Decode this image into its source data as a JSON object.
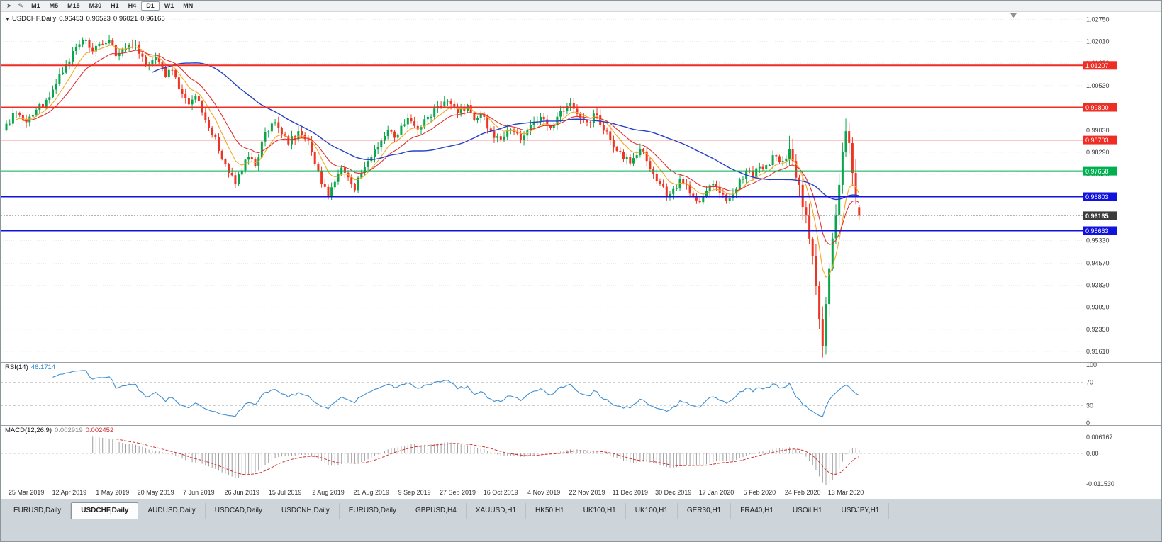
{
  "toolbar": {
    "timeframes": [
      "M1",
      "M5",
      "M15",
      "M30",
      "H1",
      "H4",
      "D1",
      "W1",
      "MN"
    ],
    "active_timeframe": "D1",
    "cursor_icon": "cursor",
    "pencil_icon": "pencil"
  },
  "chart": {
    "title": "USDCHF,Daily",
    "ohlc": {
      "open": "0.96453",
      "high": "0.96523",
      "low": "0.96021",
      "close": "0.96165"
    },
    "axis_ticks": [
      1.0275,
      1.0201,
      1.0128,
      1.0053,
      0.998,
      0.9903,
      0.9829,
      0.9755,
      0.968,
      0.9533,
      0.9457,
      0.9383,
      0.9309,
      0.9235,
      0.9161
    ],
    "levels": [
      {
        "price": 1.01207,
        "label": "1.01207",
        "color": "#ee2e24",
        "width": 2
      },
      {
        "price": 0.998,
        "label": "0.99800",
        "color": "#ee2e24",
        "width": 2
      },
      {
        "price": 0.98703,
        "label": "0.98703",
        "color": "#ee2e24",
        "width": 1.3
      },
      {
        "price": 0.97658,
        "label": "0.97658",
        "color": "#00b050",
        "width": 2
      },
      {
        "price": 0.96803,
        "label": "0.96803",
        "color": "#1212dd",
        "width": 2
      },
      {
        "price": 0.95663,
        "label": "0.95663",
        "color": "#1212dd",
        "width": 2
      }
    ],
    "current_price": {
      "value": 0.96165,
      "label": "0.96165",
      "tag_color": "#3c3c3c"
    },
    "dates": [
      "25 Mar 2019",
      "12 Apr 2019",
      "1 May 2019",
      "20 May 2019",
      "7 Jun 2019",
      "26 Jun 2019",
      "15 Jul 2019",
      "2 Aug 2019",
      "21 Aug 2019",
      "9 Sep 2019",
      "27 Sep 2019",
      "16 Oct 2019",
      "4 Nov 2019",
      "22 Nov 2019",
      "11 Dec 2019",
      "30 Dec 2019",
      "17 Jan 2020",
      "5 Feb 2020",
      "24 Feb 2020",
      "13 Mar 2020"
    ]
  },
  "rsi": {
    "label": "RSI(14)",
    "value": "46.1714",
    "period": 14,
    "axis_labels": [
      "100",
      "70",
      "30",
      "0"
    ],
    "axis_values": [
      100,
      70,
      30,
      0
    ],
    "dashed_levels": [
      70,
      30
    ]
  },
  "macd": {
    "label": "MACD(12,26,9)",
    "value_main": "0.002919",
    "value_signal": "0.002452",
    "params": [
      12,
      26,
      9
    ],
    "axis_labels": [
      "0.006167",
      "0.00",
      "-0.011530"
    ],
    "axis_values": [
      0.006167,
      0.0,
      -0.01153
    ]
  },
  "tabs": [
    {
      "label": "EURUSD,Daily",
      "active": false
    },
    {
      "label": "USDCHF,Daily",
      "active": true
    },
    {
      "label": "AUDUSD,Daily",
      "active": false
    },
    {
      "label": "USDCAD,Daily",
      "active": false
    },
    {
      "label": "USDCNH,Daily",
      "active": false
    },
    {
      "label": "EURUSD,Daily",
      "active": false
    },
    {
      "label": "GBPUSD,H4",
      "active": false
    },
    {
      "label": "XAUUSD,H1",
      "active": false
    },
    {
      "label": "HK50,H1",
      "active": false
    },
    {
      "label": "UK100,H1",
      "active": false
    },
    {
      "label": "UK100,H1",
      "active": false
    },
    {
      "label": "GER30,H1",
      "active": false
    },
    {
      "label": "FRA40,H1",
      "active": false
    },
    {
      "label": "USOil,H1",
      "active": false
    },
    {
      "label": "USDJPY,H1",
      "active": false
    }
  ],
  "chart_data": {
    "type": "candlestick",
    "symbol": "USDCHF",
    "timeframe": "Daily",
    "count": 258,
    "price_min": 0.9161,
    "price_max": 1.0275,
    "jitter": 0.0028,
    "volatile_from": 236,
    "keypoints": [
      [
        0,
        0.9925
      ],
      [
        3,
        0.9962
      ],
      [
        6,
        0.993
      ],
      [
        9,
        0.9972
      ],
      [
        12,
        1.0005
      ],
      [
        15,
        1.0058
      ],
      [
        18,
        1.0125
      ],
      [
        21,
        1.0183
      ],
      [
        24,
        1.0205
      ],
      [
        26,
        1.0168
      ],
      [
        28,
        1.0193
      ],
      [
        31,
        1.0205
      ],
      [
        33,
        1.0152
      ],
      [
        36,
        1.0176
      ],
      [
        39,
        1.019
      ],
      [
        42,
        1.0122
      ],
      [
        45,
        1.015
      ],
      [
        48,
        1.0082
      ],
      [
        50,
        1.0105
      ],
      [
        52,
        1.0042
      ],
      [
        55,
        0.999
      ],
      [
        57,
        1.0018
      ],
      [
        60,
        0.9936
      ],
      [
        63,
        0.988
      ],
      [
        65,
        0.9806
      ],
      [
        67,
        0.976
      ],
      [
        69,
        0.9722
      ],
      [
        71,
        0.9768
      ],
      [
        73,
        0.9814
      ],
      [
        75,
        0.9782
      ],
      [
        78,
        0.9896
      ],
      [
        81,
        0.993
      ],
      [
        83,
        0.989
      ],
      [
        85,
        0.9856
      ],
      [
        88,
        0.99
      ],
      [
        91,
        0.9868
      ],
      [
        93,
        0.979
      ],
      [
        95,
        0.9722
      ],
      [
        97,
        0.9682
      ],
      [
        99,
        0.973
      ],
      [
        101,
        0.9778
      ],
      [
        103,
        0.9745
      ],
      [
        105,
        0.9702
      ],
      [
        107,
        0.976
      ],
      [
        109,
        0.98
      ],
      [
        111,
        0.9838
      ],
      [
        113,
        0.9868
      ],
      [
        115,
        0.9904
      ],
      [
        117,
        0.9878
      ],
      [
        119,
        0.9918
      ],
      [
        121,
        0.9944
      ],
      [
        124,
        0.9906
      ],
      [
        127,
        0.9948
      ],
      [
        130,
        0.9984
      ],
      [
        133,
        1.0002
      ],
      [
        136,
        0.996
      ],
      [
        139,
        0.9988
      ],
      [
        141,
        0.9936
      ],
      [
        143,
        0.9958
      ],
      [
        146,
        0.99
      ],
      [
        149,
        0.9872
      ],
      [
        152,
        0.9906
      ],
      [
        155,
        0.987
      ],
      [
        158,
        0.992
      ],
      [
        161,
        0.9948
      ],
      [
        164,
        0.9912
      ],
      [
        167,
        0.9968
      ],
      [
        170,
        0.9994
      ],
      [
        172,
        0.9958
      ],
      [
        175,
        0.993
      ],
      [
        178,
        0.9954
      ],
      [
        180,
        0.9902
      ],
      [
        182,
        0.987
      ],
      [
        185,
        0.983
      ],
      [
        188,
        0.9792
      ],
      [
        191,
        0.984
      ],
      [
        193,
        0.98
      ],
      [
        195,
        0.9756
      ],
      [
        197,
        0.9722
      ],
      [
        199,
        0.9682
      ],
      [
        201,
        0.9706
      ],
      [
        203,
        0.974
      ],
      [
        205,
        0.972
      ],
      [
        207,
        0.9682
      ],
      [
        209,
        0.9662
      ],
      [
        211,
        0.97
      ],
      [
        213,
        0.9722
      ],
      [
        215,
        0.9692
      ],
      [
        217,
        0.9666
      ],
      [
        219,
        0.969
      ],
      [
        221,
        0.9738
      ],
      [
        223,
        0.9768
      ],
      [
        225,
        0.9746
      ],
      [
        227,
        0.978
      ],
      [
        229,
        0.9786
      ],
      [
        232,
        0.9816
      ],
      [
        234,
        0.98
      ],
      [
        236,
        0.984
      ],
      [
        237,
        0.98
      ],
      [
        239,
        0.972
      ],
      [
        241,
        0.962
      ],
      [
        243,
        0.948
      ],
      [
        244,
        0.938
      ],
      [
        245,
        0.927
      ],
      [
        246,
        0.918
      ],
      [
        247,
        0.932
      ],
      [
        248,
        0.944
      ],
      [
        249,
        0.954
      ],
      [
        250,
        0.962
      ],
      [
        251,
        0.972
      ],
      [
        252,
        0.983
      ],
      [
        253,
        0.99
      ],
      [
        254,
        0.986
      ],
      [
        255,
        0.976
      ],
      [
        256,
        0.968
      ],
      [
        257,
        0.96165
      ]
    ],
    "moving_averages": [
      {
        "name": "fast",
        "period": 8,
        "type": "ema"
      },
      {
        "name": "mid",
        "period": 16,
        "type": "ema"
      },
      {
        "name": "slow",
        "period": 45,
        "type": "sma"
      }
    ],
    "colors": {
      "up": "#0aa64b",
      "down": "#ee3524",
      "ma_fast": "#f5a623",
      "ma_mid": "#e03131",
      "ma_slow": "#2440c8",
      "rsi": "#3f8fd2",
      "macd_hist": "#9e9ea2",
      "macd_signal": "#d03030",
      "grid": "#ececec",
      "axis_text": "#3c3c3c"
    }
  }
}
